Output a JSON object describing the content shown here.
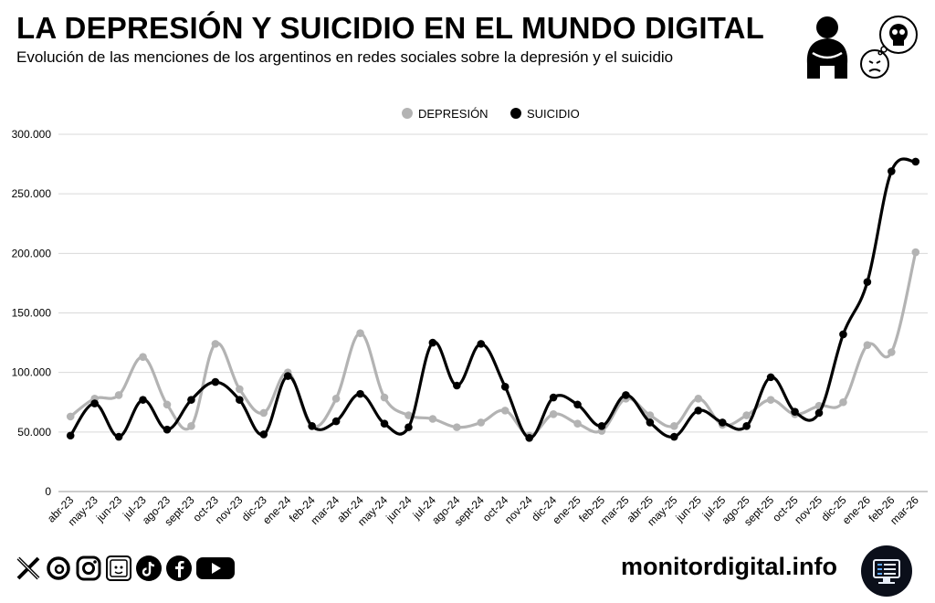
{
  "header": {
    "title": "LA DEPRESIÓN Y SUICIDIO EN EL MUNDO DIGITAL",
    "subtitle": "Evolución de las menciones de los argentinos en redes sociales sobre la depresión y el suicidio"
  },
  "footer": {
    "site": "monitordigital.info",
    "social_icons": [
      "x-icon",
      "threads-icon",
      "instagram-icon",
      "linkedin-icon",
      "tiktok-icon",
      "facebook-icon",
      "youtube-icon"
    ]
  },
  "colors": {
    "depresion": "#b3b3b3",
    "suicidio": "#000000",
    "grid": "#d9d9d9"
  },
  "chart_data": {
    "type": "line",
    "title": "LA DEPRESIÓN Y SUICIDIO EN EL MUNDO DIGITAL",
    "xlabel": "",
    "ylabel": "",
    "ylim": [
      0,
      300000
    ],
    "yticks": [
      0,
      50000,
      100000,
      150000,
      200000,
      250000,
      300000
    ],
    "ytick_labels": [
      "0",
      "50.000",
      "100.000",
      "150.000",
      "200.000",
      "250.000",
      "300.000"
    ],
    "legend_position": "top-center",
    "grid": true,
    "categories": [
      "abr-23",
      "may-23",
      "jun-23",
      "jul-23",
      "ago-23",
      "sept-23",
      "oct-23",
      "nov-23",
      "dic-23",
      "ene-24",
      "feb-24",
      "mar-24",
      "abr-24",
      "may-24",
      "jun-24",
      "jul-24",
      "ago-24",
      "sept-24",
      "oct-24",
      "nov-24",
      "dic-24",
      "ene-25",
      "feb-25",
      "mar-25",
      "abr-25",
      "may-25",
      "jun-25",
      "jul-25",
      "ago-25",
      "sept-25",
      "oct-25",
      "nov-25",
      "dic-25",
      "ene-26",
      "feb-26",
      "mar-26"
    ],
    "series": [
      {
        "name": "DEPRESIÓN",
        "values": [
          63000,
          78000,
          81000,
          113000,
          73000,
          55000,
          124000,
          86000,
          66000,
          100000,
          55000,
          78000,
          133000,
          79000,
          64000,
          61000,
          54000,
          58000,
          68000,
          47000,
          65000,
          57000,
          51000,
          78000,
          64000,
          55000,
          78000,
          56000,
          64000,
          77000,
          65000,
          72000,
          75000,
          123000,
          117000,
          201000
        ]
      },
      {
        "name": "SUICIDIO",
        "values": [
          47000,
          74000,
          46000,
          77000,
          52000,
          77000,
          92000,
          77000,
          48000,
          97000,
          55000,
          59000,
          82000,
          57000,
          54000,
          125000,
          89000,
          124000,
          88000,
          45000,
          79000,
          73000,
          55000,
          81000,
          58000,
          46000,
          68000,
          58000,
          55000,
          96000,
          67000,
          66000,
          132000,
          176000,
          269000,
          277000
        ]
      }
    ]
  }
}
